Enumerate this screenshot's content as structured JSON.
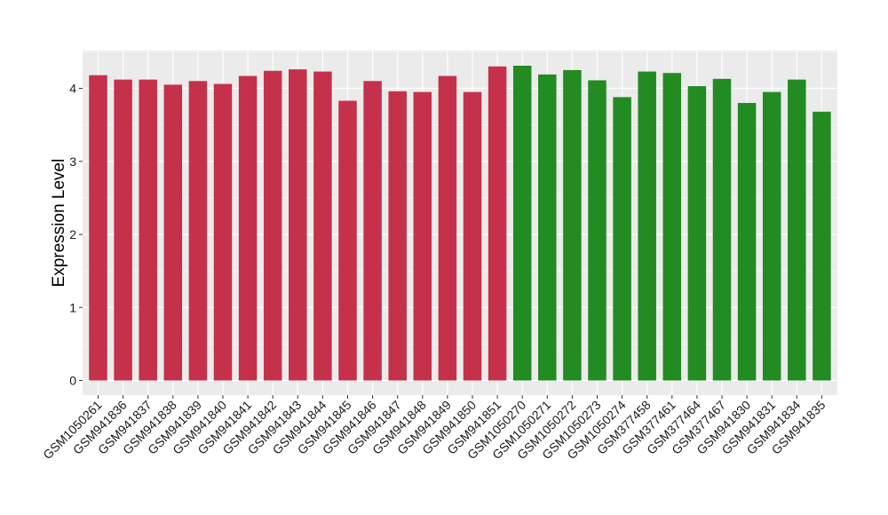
{
  "chart_data": {
    "type": "bar",
    "ylabel": "Expression Level",
    "xlabel": "",
    "ylim": [
      0,
      4.5
    ],
    "yticks": [
      0,
      1,
      2,
      3,
      4
    ],
    "grid": true,
    "panel_background": "#ebebeb",
    "grid_color": "#ffffff",
    "categories": [
      "GSM1050261",
      "GSM941836",
      "GSM941837",
      "GSM941838",
      "GSM941839",
      "GSM941840",
      "GSM941841",
      "GSM941842",
      "GSM941843",
      "GSM941844",
      "GSM941845",
      "GSM941846",
      "GSM941847",
      "GSM941848",
      "GSM941849",
      "GSM941850",
      "GSM941851",
      "GSM1050270",
      "GSM1050271",
      "GSM1050272",
      "GSM1050273",
      "GSM1050274",
      "GSM377458",
      "GSM377461",
      "GSM377464",
      "GSM377467",
      "GSM941830",
      "GSM941831",
      "GSM941834",
      "GSM941835"
    ],
    "values": [
      4.18,
      4.12,
      4.12,
      4.05,
      4.1,
      4.06,
      4.17,
      4.24,
      4.26,
      4.23,
      3.83,
      4.1,
      3.96,
      3.95,
      4.17,
      3.95,
      4.3,
      4.31,
      4.19,
      4.25,
      4.11,
      3.88,
      4.23,
      4.21,
      4.03,
      4.13,
      3.8,
      3.95,
      4.12,
      3.68
    ],
    "bar_colors": [
      "#c5314a",
      "#c5314a",
      "#c5314a",
      "#c5314a",
      "#c5314a",
      "#c5314a",
      "#c5314a",
      "#c5314a",
      "#c5314a",
      "#c5314a",
      "#c5314a",
      "#c5314a",
      "#c5314a",
      "#c5314a",
      "#c5314a",
      "#c5314a",
      "#c5314a",
      "#228b22",
      "#228b22",
      "#228b22",
      "#228b22",
      "#228b22",
      "#228b22",
      "#228b22",
      "#228b22",
      "#228b22",
      "#228b22",
      "#228b22",
      "#228b22",
      "#228b22"
    ]
  }
}
